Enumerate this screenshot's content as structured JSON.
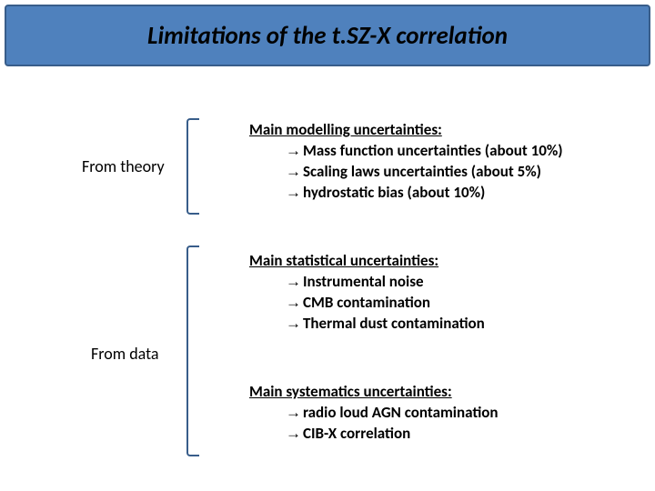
{
  "colors": {
    "title_border": "#385d8a",
    "title_bg": "#4f81bd",
    "bracket": "#385d8a"
  },
  "title": "Limitations of the t.SZ-X correlation",
  "labels": {
    "theory": "From theory",
    "data": "From data"
  },
  "arrow": "→",
  "blocks": {
    "b1": {
      "heading": "Main modelling uncertainties:",
      "items": [
        "Mass function uncertainties (about 10%)",
        "Scaling laws uncertainties (about 5%)",
        "hydrostatic bias (about 10%)"
      ]
    },
    "b2": {
      "heading": "Main statistical uncertainties:",
      "items": [
        "Instrumental noise",
        "CMB contamination",
        "Thermal dust contamination"
      ]
    },
    "b3": {
      "heading": "Main systematics uncertainties:",
      "items": [
        "radio loud AGN contamination",
        "CIB-X correlation"
      ]
    }
  }
}
